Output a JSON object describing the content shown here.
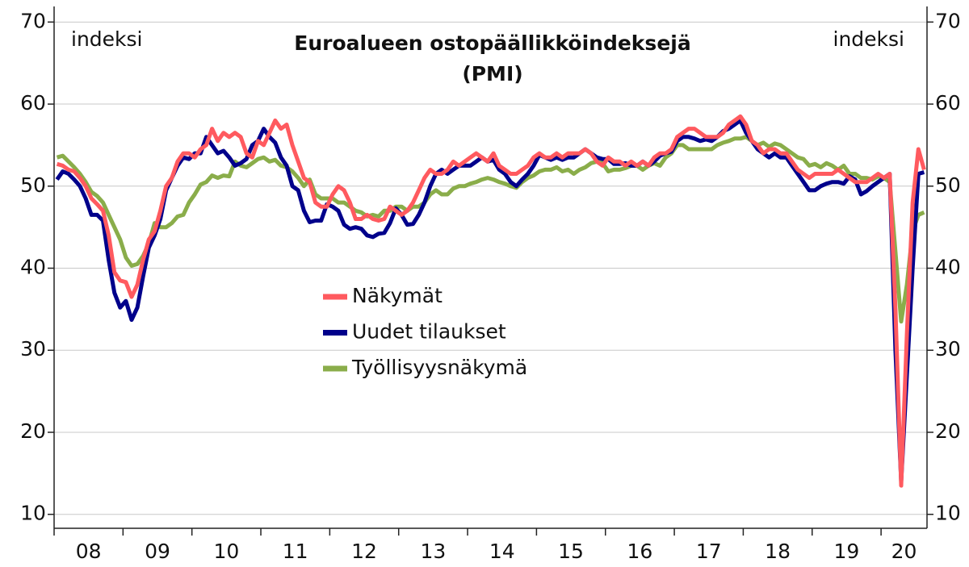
{
  "chart_data": {
    "type": "line",
    "title": [
      "Euroalueen ostopäällikköindeksejä",
      "(PMI)"
    ],
    "y_label": "indeksi",
    "y2_label": "indeksi",
    "categories": [
      "08",
      null,
      null,
      null,
      null,
      null,
      null,
      null,
      null,
      null,
      null,
      null,
      "09",
      null,
      null,
      null,
      null,
      null,
      null,
      null,
      null,
      null,
      null,
      null,
      "10",
      null,
      null,
      null,
      null,
      null,
      null,
      null,
      null,
      null,
      null,
      null,
      "11",
      null,
      null,
      null,
      null,
      null,
      null,
      null,
      null,
      null,
      null,
      null,
      "12",
      null,
      null,
      null,
      null,
      null,
      null,
      null,
      null,
      null,
      null,
      null,
      "13",
      null,
      null,
      null,
      null,
      null,
      null,
      null,
      null,
      null,
      null,
      null,
      "14",
      null,
      null,
      null,
      null,
      null,
      null,
      null,
      null,
      null,
      null,
      null,
      "15",
      null,
      null,
      null,
      null,
      null,
      null,
      null,
      null,
      null,
      null,
      null,
      "16",
      null,
      null,
      null,
      null,
      null,
      null,
      null,
      null,
      null,
      null,
      null,
      "17",
      null,
      null,
      null,
      null,
      null,
      null,
      null,
      null,
      null,
      null,
      null,
      "18",
      null,
      null,
      null,
      null,
      null,
      null,
      null,
      null,
      null,
      null,
      null,
      "19",
      null,
      null,
      null,
      null,
      null,
      null,
      null,
      null,
      null,
      null,
      null,
      "20",
      null,
      null,
      null,
      null,
      null,
      null,
      null
    ],
    "series": [
      {
        "name": "Näkymät",
        "color": "#ff5a5f",
        "values": [
          52.7,
          52.5,
          52,
          51.8,
          51,
          50,
          48.5,
          47.8,
          47,
          44,
          39.5,
          38.5,
          38.3,
          36.5,
          38,
          41,
          43.5,
          44.5,
          47,
          50,
          51,
          53,
          54,
          54,
          53.5,
          54.5,
          55,
          57,
          55.5,
          56.5,
          56,
          56.5,
          56,
          54,
          53.5,
          55.5,
          55,
          56.5,
          58,
          57,
          57.5,
          55,
          53,
          51,
          50.5,
          48,
          47.5,
          47.5,
          49,
          50,
          49.5,
          48,
          46,
          46,
          46.5,
          46,
          45.8,
          46,
          47.5,
          47,
          46.5,
          47,
          48,
          49.5,
          51,
          52,
          51.5,
          51.5,
          52,
          53,
          52.5,
          53,
          53.5,
          54,
          53.5,
          53,
          54,
          52.5,
          52,
          51.5,
          51.5,
          52,
          52.5,
          53.5,
          54,
          53.5,
          53.5,
          54,
          53.5,
          54,
          54,
          54,
          54.5,
          54,
          53,
          52.5,
          53.5,
          53,
          53,
          52.5,
          53,
          52.5,
          53,
          52.5,
          53.5,
          54,
          54,
          54.5,
          56,
          56.5,
          57,
          57,
          56.5,
          56,
          56,
          56,
          56.5,
          57.5,
          58,
          58.5,
          57.5,
          55.5,
          55,
          54,
          54.5,
          54.5,
          54,
          54,
          53,
          52,
          51.5,
          51,
          51.5,
          51.5,
          51.5,
          51.5,
          52,
          51.5,
          51,
          50.5,
          50.5,
          50.5,
          51,
          51.5,
          51,
          51.5,
          35,
          13.5,
          32,
          48,
          54.5,
          52
        ]
      },
      {
        "name": "Uudet tilaukset",
        "color": "#00008b",
        "values": [
          50.8,
          51.8,
          51.5,
          50.8,
          50,
          48.5,
          46.5,
          46.5,
          45.8,
          41,
          37,
          35.2,
          36,
          33.7,
          35.2,
          39,
          42.5,
          44,
          46,
          49.5,
          51,
          52.5,
          53.5,
          53.3,
          54,
          54,
          56,
          55,
          54,
          54.3,
          53.5,
          52.5,
          52.8,
          53.3,
          55,
          55.5,
          57,
          56,
          55.3,
          53.5,
          52.5,
          50,
          49.5,
          47,
          45.6,
          45.8,
          45.8,
          47.8,
          47.5,
          47,
          45.3,
          44.8,
          45,
          44.8,
          44,
          43.8,
          44.2,
          44.3,
          45.5,
          47.3,
          46.5,
          45.3,
          45.4,
          46.5,
          48,
          50,
          51.5,
          52,
          51.5,
          52,
          52.5,
          52.5,
          52.5,
          53,
          53.5,
          53,
          53.2,
          52,
          51.5,
          50.5,
          50,
          50.8,
          51.5,
          52.5,
          53.8,
          53.5,
          53.2,
          53.5,
          53.2,
          53.5,
          53.5,
          54,
          54.5,
          54,
          53.5,
          53.3,
          53.3,
          52.7,
          52.7,
          52.8,
          52.5,
          52.5,
          53,
          52.5,
          53,
          53.7,
          54,
          54.2,
          55.5,
          56,
          56,
          55.8,
          55.5,
          55.7,
          55.5,
          56,
          56.7,
          57,
          57.5,
          58,
          56.5,
          55.5,
          54.5,
          54,
          53.5,
          54,
          53.5,
          53.5,
          52.5,
          51.5,
          50.5,
          49.5,
          49.5,
          50,
          50.3,
          50.5,
          50.5,
          50.3,
          51.2,
          50.8,
          49,
          49.4,
          50,
          50.5,
          51,
          51.5,
          30,
          14,
          27,
          40,
          51.5,
          51.7
        ]
      },
      {
        "name": "Työllisyysnäkymä",
        "color": "#8aad4a",
        "values": [
          53.5,
          53.7,
          53,
          52.3,
          51.5,
          50.5,
          49.3,
          48.8,
          48,
          46.5,
          45,
          43.5,
          41.3,
          40.3,
          40.5,
          41.5,
          43,
          45.5,
          45,
          45,
          45.5,
          46.3,
          46.5,
          48,
          49,
          50.2,
          50.5,
          51.3,
          51,
          51.3,
          51.2,
          53,
          52.5,
          52.3,
          52.8,
          53.3,
          53.5,
          53,
          53.2,
          52.5,
          52.3,
          51.8,
          51,
          50,
          50.8,
          49,
          48.5,
          48.5,
          48.5,
          48,
          48,
          47.5,
          47,
          46.8,
          46.3,
          46.5,
          46.3,
          47,
          47,
          47.5,
          47.5,
          47,
          47.5,
          47.5,
          48,
          49,
          49.5,
          49,
          49,
          49.7,
          50,
          50,
          50.3,
          50.5,
          50.8,
          51,
          50.8,
          50.5,
          50.3,
          50,
          49.8,
          50.5,
          51,
          51.3,
          51.8,
          52,
          52,
          52.3,
          51.8,
          52,
          51.5,
          52,
          52.3,
          52.8,
          53,
          52.8,
          51.8,
          52,
          52,
          52.2,
          52.5,
          52.5,
          52,
          52.5,
          52.8,
          52.5,
          53.5,
          54,
          55,
          55,
          54.5,
          54.5,
          54.5,
          54.5,
          54.5,
          55,
          55.3,
          55.5,
          55.8,
          55.8,
          56,
          55.5,
          55,
          55.3,
          54.8,
          55.2,
          55,
          54.5,
          54,
          53.5,
          53.3,
          52.5,
          52.7,
          52.3,
          52.8,
          52.5,
          52,
          52.5,
          51.5,
          51.5,
          51,
          51,
          50.8,
          51.2,
          51,
          50.5,
          42,
          33.5,
          38,
          44.5,
          46.5,
          46.8
        ]
      }
    ],
    "ylim": [
      8.3,
      71.9
    ],
    "yticks": [
      10,
      20,
      30,
      40,
      50,
      60,
      70
    ],
    "y2lim": [
      8.3,
      71.9
    ],
    "y2ticks": [
      10,
      20,
      30,
      40,
      50,
      60,
      70
    ],
    "grid": true,
    "legend": "center"
  }
}
